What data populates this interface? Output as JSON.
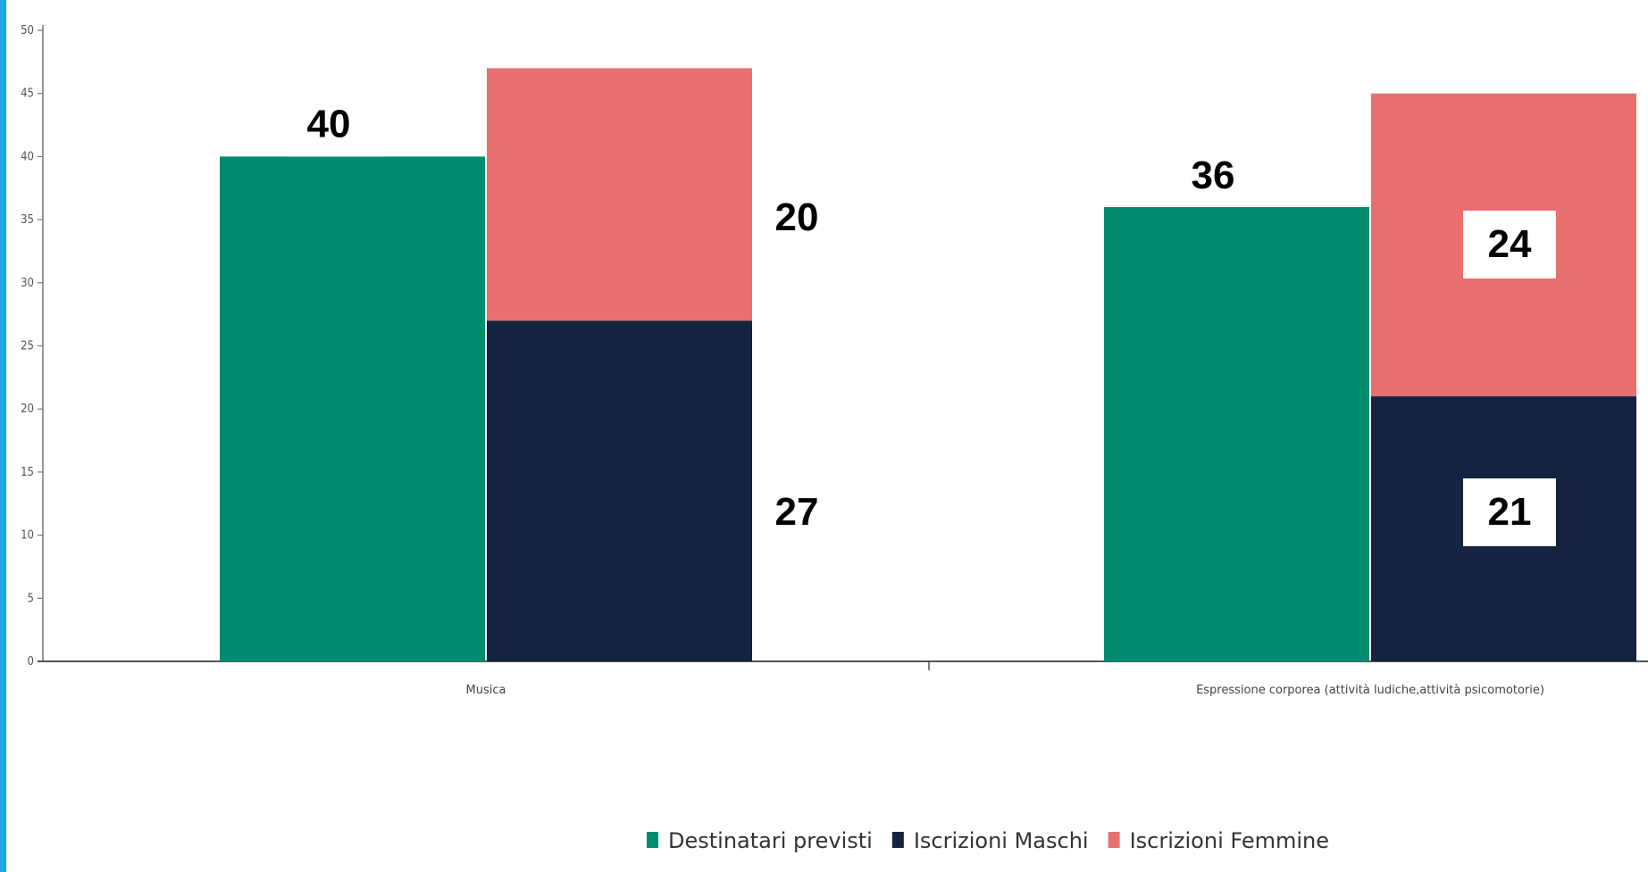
{
  "page": {
    "edge_color": "#1aa8e8"
  },
  "chart_data": {
    "type": "bar",
    "categories": [
      "Musica",
      "Espressione corporea (attività ludiche,attività psicomotorie)"
    ],
    "series": [
      {
        "name": "Destinatari previsti",
        "values": [
          40,
          36
        ],
        "color": "#008c6e",
        "stack": "previsti"
      },
      {
        "name": "Iscrizioni Maschi",
        "values": [
          27,
          21
        ],
        "color": "#14233f",
        "stack": "iscrizioni"
      },
      {
        "name": "Iscrizioni Femmine",
        "values": [
          20,
          24
        ],
        "color": "#e87070",
        "stack": "iscrizioni"
      }
    ],
    "ylim": [
      0,
      50
    ],
    "yticks": [
      0,
      5,
      10,
      15,
      20,
      25,
      30,
      35,
      40,
      45,
      50
    ],
    "grid": false,
    "legend": "bottom-center",
    "title": "",
    "xlabel": "",
    "ylabel": ""
  }
}
